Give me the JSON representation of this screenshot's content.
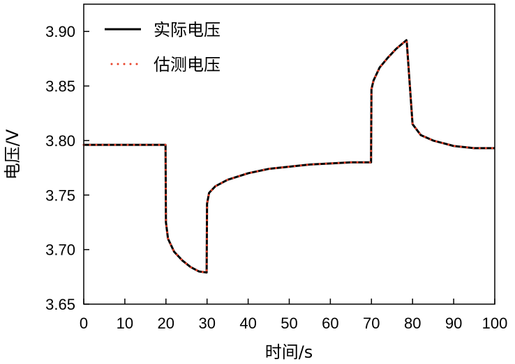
{
  "chart_data": {
    "type": "line",
    "xlabel": "时间/s",
    "ylabel": "电压/V",
    "xlim": [
      0,
      100
    ],
    "ylim": [
      3.65,
      3.925
    ],
    "xticks": [
      "0",
      "10",
      "20",
      "30",
      "40",
      "50",
      "60",
      "70",
      "80",
      "90",
      "100"
    ],
    "yticks": [
      "3.65",
      "3.70",
      "3.75",
      "3.80",
      "3.85",
      "3.90"
    ],
    "grid": false,
    "legend_position": "top-left",
    "series": [
      {
        "name": "实际电压",
        "color": "#000000",
        "style": "solid",
        "x": [
          0,
          19.9,
          20,
          20.5,
          22,
          24,
          26,
          28,
          29.9,
          30,
          30.5,
          32,
          35,
          40,
          45,
          50,
          55,
          60,
          65,
          69.9,
          70,
          70.5,
          72,
          74,
          76,
          78.5,
          78.6,
          80,
          82,
          85,
          90,
          95,
          100
        ],
        "y": [
          3.796,
          3.796,
          3.725,
          3.71,
          3.698,
          3.69,
          3.684,
          3.68,
          3.679,
          3.742,
          3.752,
          3.758,
          3.764,
          3.77,
          3.774,
          3.776,
          3.778,
          3.779,
          3.78,
          3.78,
          3.847,
          3.855,
          3.867,
          3.876,
          3.884,
          3.892,
          3.89,
          3.815,
          3.805,
          3.8,
          3.795,
          3.793,
          3.793
        ]
      },
      {
        "name": "估测电压",
        "color": "#e8432a",
        "style": "dotted",
        "x": [
          0,
          19.9,
          20,
          20.5,
          22,
          24,
          26,
          28,
          29.9,
          30,
          30.5,
          32,
          35,
          40,
          45,
          50,
          55,
          60,
          65,
          69.9,
          70,
          70.5,
          72,
          74,
          76,
          78.5,
          78.6,
          80,
          82,
          85,
          90,
          95,
          100
        ],
        "y": [
          3.796,
          3.796,
          3.725,
          3.71,
          3.698,
          3.69,
          3.684,
          3.68,
          3.679,
          3.742,
          3.752,
          3.758,
          3.764,
          3.77,
          3.774,
          3.776,
          3.778,
          3.779,
          3.78,
          3.78,
          3.847,
          3.855,
          3.867,
          3.876,
          3.884,
          3.892,
          3.89,
          3.815,
          3.805,
          3.8,
          3.795,
          3.793,
          3.793
        ]
      }
    ]
  }
}
